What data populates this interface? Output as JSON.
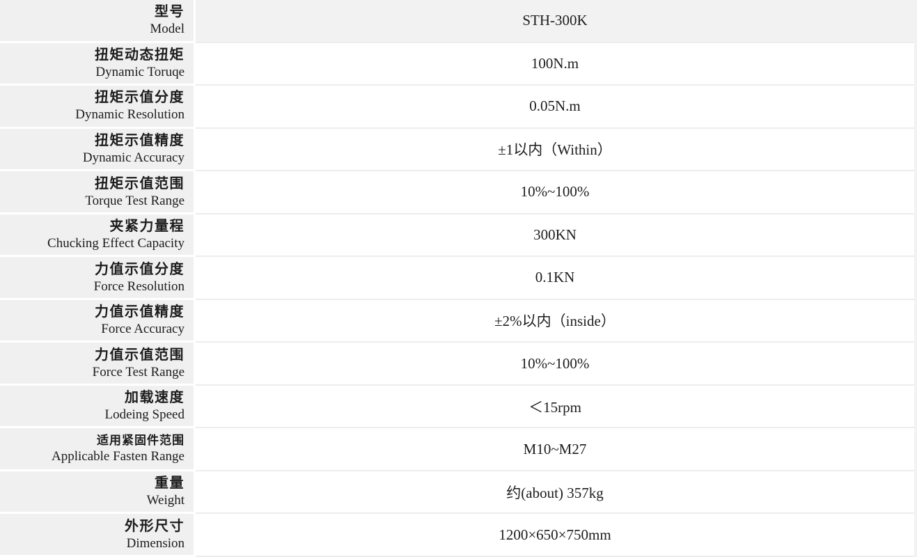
{
  "table": {
    "rows": [
      {
        "zh": "型号",
        "en": "Model",
        "value": "STH-300K"
      },
      {
        "zh": "扭矩动态扭矩",
        "en": "Dynamic Toruqe",
        "value": "100N.m"
      },
      {
        "zh": "扭矩示值分度",
        "en": "Dynamic Resolution",
        "value": "0.05N.m"
      },
      {
        "zh": "扭矩示值精度",
        "en": "Dynamic Accuracy",
        "value": "±1以内（Within）"
      },
      {
        "zh": "扭矩示值范围",
        "en": "Torque Test Range",
        "value": "10%~100%"
      },
      {
        "zh": "夹紧力量程",
        "en": "Chucking Effect Capacity",
        "value": "300KN"
      },
      {
        "zh": "力值示值分度",
        "en": "Force Resolution",
        "value": "0.1KN"
      },
      {
        "zh": "力值示值精度",
        "en": "Force Accuracy",
        "value": "±2%以内（inside）"
      },
      {
        "zh": "力值示值范围",
        "en": "Force Test Range",
        "value": "10%~100%"
      },
      {
        "zh": "加载速度",
        "en": "Lodeing Speed",
        "value": "＜15rpm"
      },
      {
        "zh": "适用紧固件范围",
        "en": "Applicable Fasten Range",
        "value": "M10~M27"
      },
      {
        "zh": "重量",
        "en": "Weight",
        "value": "约(about) 357kg"
      },
      {
        "zh": "外形尺寸",
        "en": "Dimension",
        "value": "1200×650×750mm"
      }
    ]
  },
  "colors": {
    "label-bg": "#f0f0f0",
    "header-bg": "#f2f2f2",
    "divider": "#ededed",
    "edge-bg": "#f2f2f2",
    "text": "#1c1c1c"
  }
}
